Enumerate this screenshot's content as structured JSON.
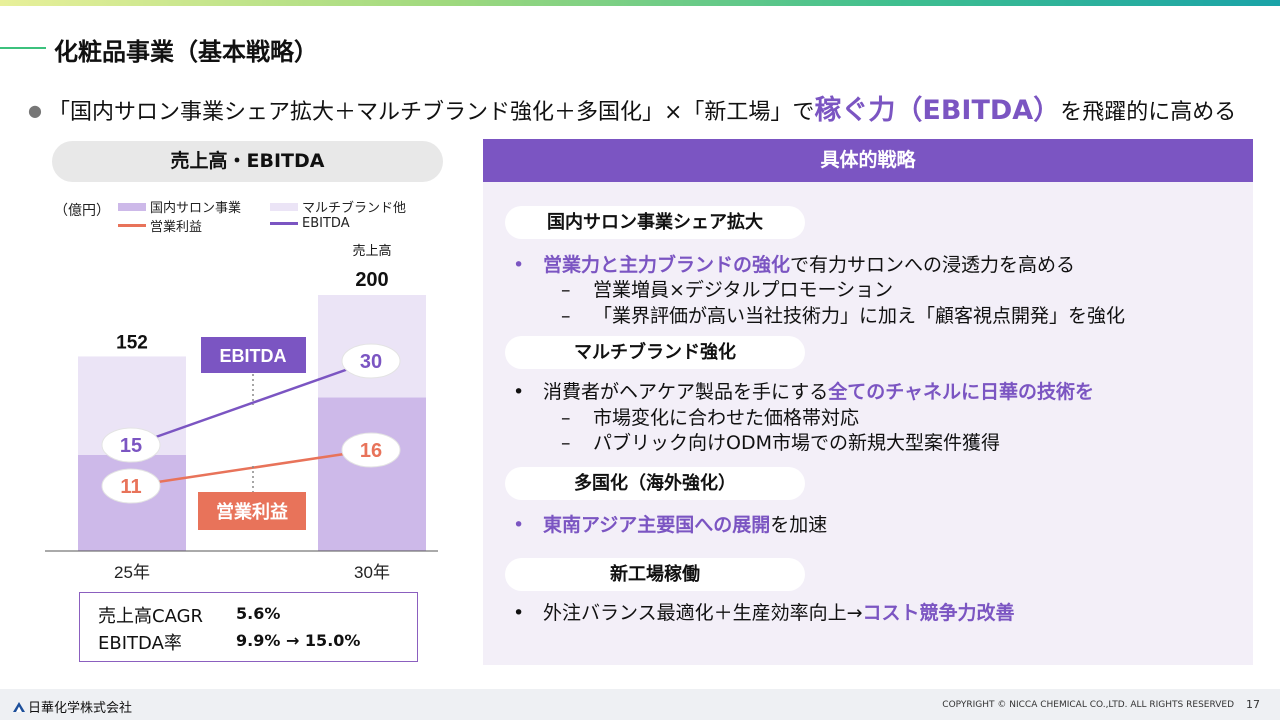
{
  "slide": {
    "title": "化粧品事業（基本戦略）",
    "headline": {
      "text": "「国内サロン事業シェア拡大＋マルチブランド強化＋多国化」×「新工場」で",
      "accent": "稼ぐ力（EBITDA）",
      "tail": "を飛躍的に高める"
    }
  },
  "left": {
    "pill_label": "売上高・EBITDA",
    "unit": "（億円）",
    "legend": {
      "domestic": "国内サロン事業",
      "multibrand": "マルチブランド他",
      "operating_profit": "営業利益",
      "ebitda": "EBITDA"
    },
    "colors": {
      "domestic": "#cdb9e9",
      "multibrand": "#ebe4f6",
      "operating_profit": "#e8735a",
      "ebitda": "#7b55c2"
    },
    "kpi": {
      "cagr_label": "売上高CAGR",
      "cagr_value": "5.6%",
      "ebitda_rate_label": "EBITDA率",
      "ebitda_rate_value": "9.9% → 15.0%"
    }
  },
  "chart_data": {
    "type": "bar",
    "categories": [
      "25年",
      "30年"
    ],
    "series": [
      {
        "name": "国内サロン事業",
        "values": [
          75,
          120
        ]
      },
      {
        "name": "マルチブランド他",
        "values": [
          77,
          80
        ]
      },
      {
        "name": "EBITDA",
        "values": [
          15,
          30
        ]
      },
      {
        "name": "営業利益",
        "values": [
          11,
          16
        ]
      }
    ],
    "totals": [
      152,
      200
    ],
    "total_header": "売上高",
    "callouts": {
      "ebitda": "EBITDA",
      "operating_profit": "営業利益"
    },
    "ylim": [
      0,
      200
    ]
  },
  "right": {
    "header": "具体的戦略",
    "sections": [
      {
        "title": "国内サロン事業シェア拡大",
        "bullet_hl": "営業力と主力ブランドの強化",
        "bullet_rest": "で有力サロンへの浸透力を高める",
        "subs": [
          "営業増員×デジタルプロモーション",
          "「業界評価が高い当社技術力」に加え「顧客視点開発」を強化"
        ]
      },
      {
        "title": "マルチブランド強化",
        "bullet_pre": "消費者がヘアケア製品を手にする",
        "bullet_hl": "全てのチャネルに日華の技術を",
        "subs": [
          "市場変化に合わせた価格帯対応",
          "パブリック向けODM市場での新規大型案件獲得"
        ]
      },
      {
        "title": "多国化（海外強化）",
        "bullet_hl": "東南アジア主要国への展開",
        "bullet_rest": "を加速"
      },
      {
        "title": "新工場稼働",
        "bullet_pre": "外注バランス最適化＋生産効率向上→",
        "bullet_hl": "コスト競争力改善"
      }
    ]
  },
  "footer": {
    "company": "日華化学株式会社",
    "copyright": "COPYRIGHT © NICCA CHEMICAL CO.,LTD. ALL RIGHTS RESERVED",
    "page": "17"
  }
}
